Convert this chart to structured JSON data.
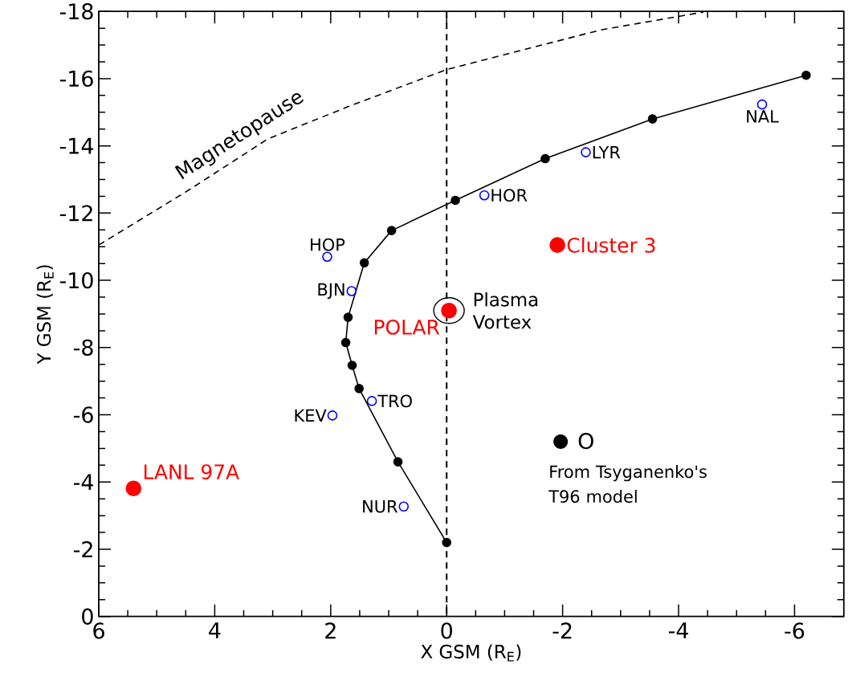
{
  "chart_data": {
    "type": "scatter",
    "xlabel": "X GSM (R$_{E}$)",
    "ylabel": "Y GSM (R$_{E}$)",
    "xlim": [
      6,
      -6.85
    ],
    "ylim": [
      0,
      -18
    ],
    "xticks": [
      6,
      4,
      2,
      0,
      -2,
      -4,
      -6
    ],
    "yticks": [
      0,
      -2,
      -4,
      -6,
      -8,
      -10,
      -12,
      -14,
      -16,
      -18
    ],
    "legend": "bottom right",
    "series": [
      {
        "name": "O",
        "type": "line",
        "marker": "circle",
        "color": "#000000",
        "x": [
          0,
          0.84,
          1.51,
          1.63,
          1.74,
          1.7,
          1.42,
          0.95,
          -0.15,
          -1.7,
          -3.55,
          -6.2
        ],
        "values": [
          -2.2,
          -4.6,
          -6.78,
          -7.47,
          -8.15,
          -8.9,
          -10.52,
          -11.48,
          -12.38,
          -13.62,
          -14.8,
          -16.1
        ]
      },
      {
        "name": "Magnetopause",
        "type": "line",
        "marker": "none",
        "line_style": "dashed",
        "color": "#000000",
        "x": [
          6.0,
          4.48,
          3.09,
          1.71,
          0,
          -2.66,
          -4.43
        ],
        "values": [
          -11.05,
          -12.65,
          -14.2,
          -15.16,
          -16.27,
          -17.45,
          -17.98
        ]
      },
      {
        "marker": "open circle",
        "color": "#0000ff",
        "x": [
          2.06,
          1.64,
          1.97,
          1.29,
          0.74,
          -0.65,
          -2.4,
          -5.44
        ],
        "values": [
          -10.7,
          -9.68,
          -5.98,
          -6.41,
          -3.27,
          -12.53,
          -13.81,
          -15.23
        ]
      },
      {
        "marker": "circle",
        "color": "#ff0000",
        "x": [
          5.4,
          -0.04,
          -1.91
        ],
        "values": [
          -3.81,
          -9.1,
          -11.05
        ]
      }
    ],
    "ref_lines": [
      {
        "axis": "x",
        "value": 0,
        "line_style": "dashed",
        "color": "#000000"
      }
    ],
    "annotations": [
      {
        "text": "Plasma Vortex",
        "x": -0.04,
        "y": -9.1
      },
      "From Tsyganenko's T96 model",
      {
        "text": "HOP",
        "x": 2.06,
        "y": -10.7
      },
      {
        "text": "BJN",
        "x": 1.64,
        "y": -9.68
      },
      {
        "text": "KEV",
        "x": 1.97,
        "y": -5.98
      },
      {
        "text": "TRO",
        "x": 1.29,
        "y": -6.41
      },
      {
        "text": "NUR",
        "x": 0.74,
        "y": -3.27
      },
      {
        "text": "HOR",
        "x": -0.65,
        "y": -12.53
      },
      {
        "text": "LYR",
        "x": -2.4,
        "y": -13.81
      },
      {
        "text": "NAL",
        "x": -5.44,
        "y": -15.23
      },
      {
        "text": "LANL 97A",
        "x": 5.4,
        "y": -3.81
      },
      {
        "text": "POLAR",
        "x": -0.04,
        "y": -9.1
      },
      {
        "text": "Cluster 3",
        "x": -1.91,
        "y": -11.05
      }
    ]
  }
}
